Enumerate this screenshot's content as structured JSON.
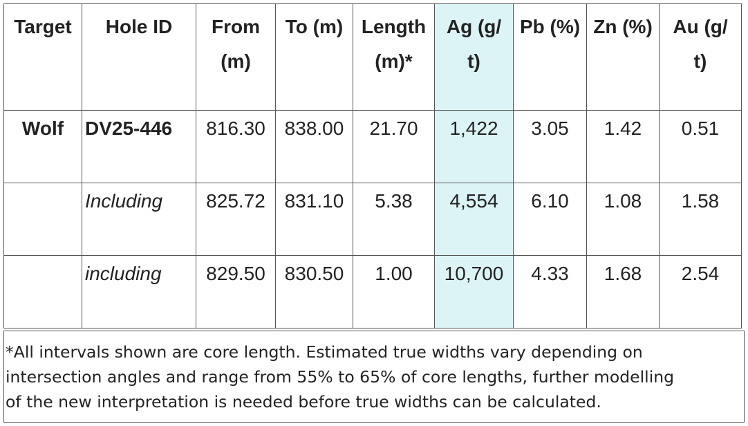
{
  "table": {
    "headers": [
      [
        "Target"
      ],
      [
        "Hole ID"
      ],
      [
        "From",
        "(m)"
      ],
      [
        "To (m)"
      ],
      [
        "Length",
        "(m)*"
      ],
      [
        "Ag (g/",
        "t)"
      ],
      [
        "Pb (%)"
      ],
      [
        "Zn (%)"
      ],
      [
        "Au (g/",
        "t)"
      ]
    ],
    "rows": [
      {
        "target": "Wolf",
        "hole_id": "DV25-446",
        "values": [
          "816.30",
          "838.00",
          "21.70",
          "1,422",
          "3.05",
          "1.42",
          "0.51"
        ]
      },
      {
        "hole_id": "Including",
        "values": [
          "825.72",
          "831.10",
          "5.38",
          "4,554",
          "6.10",
          "1.08",
          "1.58"
        ]
      },
      {
        "hole_id": "including",
        "values": [
          "829.50",
          "830.50",
          "1.00",
          "10,700",
          "4.33",
          "1.68",
          "2.54"
        ]
      }
    ]
  },
  "footnote": [
    "*All intervals shown are core length. Estimated true widths vary depending on",
    "intersection angles and range from 55% to 65% of core lengths, further modelling",
    "of the new interpretation is needed before true widths can be calculated."
  ]
}
